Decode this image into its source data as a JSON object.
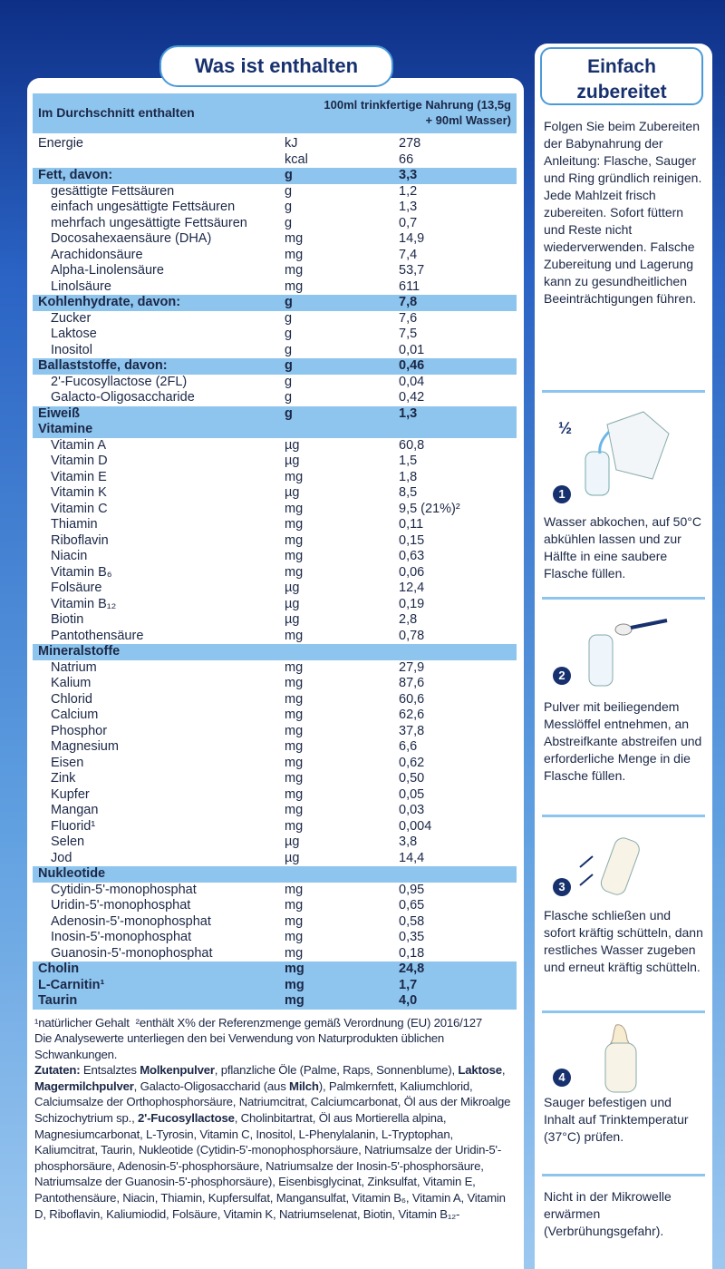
{
  "left": {
    "title": "Was ist enthalten",
    "table": {
      "head": {
        "label": "Im Durchschnitt enthalten",
        "value": "100ml trinkfertige Nahrung (13,5g + 90ml Wasser)"
      },
      "groups": [
        {
          "highlight": false,
          "head": [
            "Energie",
            "kJ",
            "278"
          ],
          "rows": [
            [
              null,
              "kcal",
              "66"
            ]
          ]
        },
        {
          "highlight": true,
          "head": [
            "Fett, davon:",
            "g",
            "3,3"
          ],
          "rows": [
            [
              "gesättigte Fettsäuren",
              "g",
              "1,2"
            ],
            [
              "einfach ungesättigte Fettsäuren",
              "g",
              "1,3"
            ],
            [
              "mehrfach ungesättigte Fettsäuren",
              "g",
              "0,7"
            ],
            [
              "Docosahexaensäure (DHA)",
              "mg",
              "14,9"
            ],
            [
              "Arachidonsäure",
              "mg",
              "7,4"
            ],
            [
              "Alpha-Linolensäure",
              "mg",
              "53,7"
            ],
            [
              "Linolsäure",
              "mg",
              "611"
            ]
          ]
        },
        {
          "highlight": true,
          "head": [
            "Kohlenhydrate, davon:",
            "g",
            "7,8"
          ],
          "rows": [
            [
              "Zucker",
              "g",
              "7,6"
            ],
            [
              "Laktose",
              "g",
              "7,5"
            ],
            [
              "Inositol",
              "g",
              "0,01"
            ]
          ]
        },
        {
          "highlight": true,
          "head": [
            "Ballaststoffe, davon:",
            "g",
            "0,46"
          ],
          "rows": [
            [
              "2'-Fucosyllactose (2FL)",
              "g",
              "0,04"
            ],
            [
              "Galacto-Oligosaccharide",
              "g",
              "0,42"
            ]
          ]
        },
        {
          "highlight": true,
          "head": [
            "Eiweiß",
            "g",
            "1,3"
          ],
          "rows": []
        },
        {
          "highlight": true,
          "head": [
            "Vitamine"
          ],
          "rows": [
            [
              "Vitamin A",
              "µg",
              "60,8"
            ],
            [
              "Vitamin D",
              "µg",
              "1,5"
            ],
            [
              "Vitamin E",
              "mg",
              "1,8"
            ],
            [
              "Vitamin K",
              "µg",
              "8,5"
            ],
            [
              "Vitamin C",
              "mg",
              "9,5 (21%)²"
            ],
            [
              "Thiamin",
              "mg",
              "0,11"
            ],
            [
              "Riboflavin",
              "mg",
              "0,15"
            ],
            [
              "Niacin",
              "mg",
              "0,63"
            ],
            [
              "Vitamin B₆",
              "mg",
              "0,06"
            ],
            [
              "Folsäure",
              "µg",
              "12,4"
            ],
            [
              "Vitamin B₁₂",
              "µg",
              "0,19"
            ],
            [
              "Biotin",
              "µg",
              "2,8"
            ],
            [
              "Pantothensäure",
              "mg",
              "0,78"
            ]
          ]
        },
        {
          "highlight": true,
          "head": [
            "Mineralstoffe"
          ],
          "rows": [
            [
              "Natrium",
              "mg",
              "27,9"
            ],
            [
              "Kalium",
              "mg",
              "87,6"
            ],
            [
              "Chlorid",
              "mg",
              "60,6"
            ],
            [
              "Calcium",
              "mg",
              "62,6"
            ],
            [
              "Phosphor",
              "mg",
              "37,8"
            ],
            [
              "Magnesium",
              "mg",
              "6,6"
            ],
            [
              "Eisen",
              "mg",
              "0,62"
            ],
            [
              "Zink",
              "mg",
              "0,50"
            ],
            [
              "Kupfer",
              "mg",
              "0,05"
            ],
            [
              "Mangan",
              "mg",
              "0,03"
            ],
            [
              "Fluorid¹",
              "mg",
              "0,004"
            ],
            [
              "Selen",
              "µg",
              "3,8"
            ],
            [
              "Jod",
              "µg",
              "14,4"
            ]
          ]
        },
        {
          "highlight": true,
          "head": [
            "Nukleotide"
          ],
          "rows": [
            [
              "Cytidin-5'-monophosphat",
              "mg",
              "0,95"
            ],
            [
              "Uridin-5'-monophosphat",
              "mg",
              "0,65"
            ],
            [
              "Adenosin-5'-monophosphat",
              "mg",
              "0,58"
            ],
            [
              "Inosin-5'-monophosphat",
              "mg",
              "0,35"
            ],
            [
              "Guanosin-5'-monophosphat",
              "mg",
              "0,18"
            ]
          ]
        },
        {
          "highlight": true,
          "head": [
            "Cholin",
            "mg",
            "24,8"
          ],
          "rows": []
        },
        {
          "highlight": true,
          "head": [
            "L-Carnitin¹",
            "mg",
            "1,7"
          ],
          "rows": []
        },
        {
          "highlight": true,
          "head": [
            "Taurin",
            "mg",
            "4,0"
          ],
          "rows": []
        }
      ]
    },
    "footnotes": [
      "¹natürlicher Gehalt",
      "²enthält X% der Referenzmenge gemäß Verordnung (EU) 2016/127"
    ],
    "analysis": "Die Analysewerte unterliegen den bei Verwendung von Naturprodukten üblichen Schwankungen.",
    "ingredients": [
      {
        "text": "Zutaten:",
        "bold": true
      },
      {
        "text": " Entsalztes "
      },
      {
        "text": "Molkenpulver",
        "bold": true
      },
      {
        "text": ", pflanzliche Öle (Palme, Raps, Sonnenblume), "
      },
      {
        "text": "Laktose",
        "bold": true
      },
      {
        "text": ", "
      },
      {
        "text": "Magermilchpulver",
        "bold": true
      },
      {
        "text": ", Galacto-Oligosaccharid (aus "
      },
      {
        "text": "Milch",
        "bold": true
      },
      {
        "text": "), Palmkernfett, Kaliumchlorid, Calciumsalze der Orthophosphorsäure, Natriumcitrat, Calciumcarbonat, Öl aus der Mikroalge Schizochytrium sp., "
      },
      {
        "text": "2'-Fucosyllactose",
        "bold": true
      },
      {
        "text": ", Cholinbitartrat, Öl aus Mortierella alpina, Magnesiumcarbonat, L-Tyrosin, Vitamin C, Inositol, L-Phenylalanin, L-Tryptophan, Kaliumcitrat, Taurin, Nukleotide (Cytidin-5'-monophosphorsäure, Natriumsalze der Uridin-5'-phosphorsäure, Adenosin-5'-phosphorsäure, Natriumsalze der Inosin-5'-phosphorsäure, Natriumsalze der Guanosin-5'-phosphorsäure), Eisenbisglycinat, Zinksulfat, Vitamin E, Pantothensäure, Niacin, Thiamin, Kupfersulfat, Mangansulfat, Vitamin B₆, Vitamin A, Vitamin D, Riboflavin, Kaliumiodid, Folsäure, Vitamin K, Natriumselenat, Biotin, Vitamin B₁₂-"
      }
    ]
  },
  "right": {
    "title": "Einfach zubereitet",
    "intro": "Folgen Sie beim Zubereiten der Babynahrung der Anleitung: Flasche, Sauger und Ring gründlich reinigen. Jede Mahlzeit frisch zubereiten. Sofort füttern und Reste nicht wiederverwenden. Falsche Zubereitung und Lagerung kann zu gesundheitlichen Beeinträchtigungen führen.",
    "half": "½",
    "steps": [
      {
        "number": "1",
        "text": "Wasser abkochen, auf 50°C abkühlen lassen und zur Hälfte in eine saubere Flasche füllen."
      },
      {
        "number": "2",
        "text": "Pulver mit beiliegendem Messlöffel entnehmen, an Abstreifkante abstreifen und erforderliche Menge in die Flasche füllen."
      },
      {
        "number": "3",
        "text": "Flasche schließen und sofort kräftig schütteln, dann restliches Wasser zugeben und erneut kräftig schütteln."
      },
      {
        "number": "4",
        "text": "Sauger befestigen und Inhalt auf Trinktemperatur (37°C) prüfen."
      }
    ],
    "note": "Nicht in der Mikrowelle erwärmen (Verbrühungsgefahr)."
  }
}
